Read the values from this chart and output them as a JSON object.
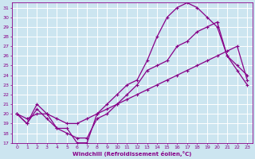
{
  "xlabel": "Windchill (Refroidissement éolien,°C)",
  "background_color": "#cce5f0",
  "grid_color": "#ffffff",
  "line_color": "#880088",
  "xlim": [
    -0.5,
    23.5
  ],
  "ylim": [
    17,
    31.5
  ],
  "xticks": [
    0,
    1,
    2,
    3,
    4,
    5,
    6,
    7,
    8,
    9,
    10,
    11,
    12,
    13,
    14,
    15,
    16,
    17,
    18,
    19,
    20,
    21,
    22,
    23
  ],
  "yticks": [
    17,
    18,
    19,
    20,
    21,
    22,
    23,
    24,
    25,
    26,
    27,
    28,
    29,
    30,
    31
  ],
  "line_bottom_x": [
    0,
    1,
    2,
    3,
    4,
    5,
    6,
    7,
    8,
    9,
    10,
    11,
    12,
    13,
    14,
    15,
    16,
    17,
    18,
    19,
    20,
    21,
    22,
    23
  ],
  "line_bottom_y": [
    20,
    19.5,
    20,
    20,
    19.5,
    19,
    19,
    19.5,
    20,
    20.5,
    21,
    21.5,
    22,
    22.5,
    23,
    23.5,
    24,
    24.5,
    25,
    25.5,
    26,
    26.5,
    27,
    23.5
  ],
  "line_upper_x": [
    0,
    1,
    2,
    3,
    4,
    5,
    6,
    7,
    8,
    9,
    10,
    11,
    12,
    13,
    14,
    15,
    16,
    17,
    18,
    19,
    20,
    21,
    22,
    23
  ],
  "line_upper_y": [
    20,
    19,
    21,
    20,
    18.5,
    18.5,
    17,
    17,
    20,
    21,
    22,
    23,
    23.5,
    25.5,
    28,
    30,
    31,
    31.5,
    31,
    30,
    29,
    26,
    25,
    24
  ],
  "line_mid_x": [
    0,
    1,
    2,
    3,
    4,
    5,
    6,
    7,
    8,
    9,
    10,
    11,
    12,
    13,
    14,
    15,
    16,
    17,
    18,
    19,
    20,
    21,
    22,
    23
  ],
  "line_mid_y": [
    20,
    19,
    20.5,
    19.5,
    18.5,
    18,
    17.5,
    17.5,
    19.5,
    20,
    21,
    22,
    23,
    24.5,
    25,
    25.5,
    27,
    27.5,
    28.5,
    29,
    29.5,
    26,
    24.5,
    23
  ]
}
